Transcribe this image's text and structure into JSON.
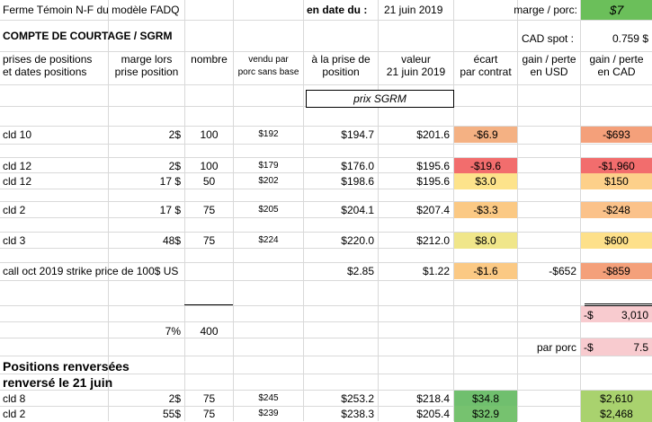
{
  "header": {
    "farm_label": "Ferme Témoin  N-F du modèle FADQ",
    "date_label": "en date du :",
    "date_value": "21 juin 2019",
    "margin_label": "marge / porc:",
    "margin_value": "$7",
    "section_title": "COMPTE DE COURTAGE / SGRM",
    "cad_spot_label": "CAD spot :",
    "cad_spot_value": "0.759 $"
  },
  "columns": {
    "col1": [
      "prises de positions",
      "et dates positions"
    ],
    "col2": [
      "marge lors",
      "prise position"
    ],
    "col3": [
      "nombre",
      ""
    ],
    "col4": [
      "vendu par",
      "porc sans base"
    ],
    "col5": [
      "à la prise de",
      "position"
    ],
    "col6": [
      "valeur",
      "21 juin 2019"
    ],
    "col7": [
      "écart",
      "par contrat"
    ],
    "col8": [
      "gain / perte",
      "en USD"
    ],
    "col9": [
      "gain / perte",
      "en CAD"
    ]
  },
  "sgrm_box_label": "prix SGRM",
  "rows": [
    {
      "name": "cld 10",
      "marge": "2$",
      "nombre": "100",
      "vendu": "$192",
      "prise": "$194.7",
      "valeur": "$201.6",
      "ecart": "-$6.9",
      "usd": "",
      "cad": "-$693",
      "ecart_color": "#f4b183",
      "cad_color": "#f4a07a"
    },
    {
      "name": "cld 12",
      "marge": "2$",
      "nombre": "100",
      "vendu": "$179",
      "prise": "$176.0",
      "valeur": "$195.6",
      "ecart": "-$19.6",
      "usd": "",
      "cad": "-$1,960",
      "ecart_color": "#f26d6d",
      "cad_color": "#f26d6d"
    },
    {
      "name": "cld 12",
      "marge": "17 $",
      "nombre": "50",
      "vendu": "$202",
      "prise": "$198.6",
      "valeur": "$195.6",
      "ecart": "$3.0",
      "usd": "",
      "cad": "$150",
      "ecart_color": "#fde38b",
      "cad_color": "#fdd08a"
    },
    {
      "name": "cld 2",
      "marge": "17 $",
      "nombre": "75",
      "vendu": "$205",
      "prise": "$204.1",
      "valeur": "$207.4",
      "ecart": "-$3.3",
      "usd": "",
      "cad": "-$248",
      "ecart_color": "#fbc984",
      "cad_color": "#fbc28a"
    },
    {
      "name": "cld 3",
      "marge": "48$",
      "nombre": "75",
      "vendu": "$224",
      "prise": "$220.0",
      "valeur": "$212.0",
      "ecart": "$8.0",
      "usd": "",
      "cad": "$600",
      "ecart_color": "#f0e68a",
      "cad_color": "#fde08a"
    },
    {
      "name": "call  oct 2019  strike price de  100$ US",
      "marge": "",
      "nombre": "",
      "vendu": "",
      "prise": "$2.85",
      "valeur": "$1.22",
      "ecart": "-$1.6",
      "usd": "-$652",
      "cad": "-$859",
      "ecart_color": "#fbc984",
      "cad_color": "#f4a07a"
    }
  ],
  "totals": {
    "total_cad_prefix": "-$",
    "total_cad": "3,010",
    "total_color": "#f8cbcf",
    "pct": "7%",
    "count": "400",
    "per_pig_label": "par porc",
    "per_pig_prefix": "-$",
    "per_pig_value": "7.5"
  },
  "reversed": {
    "title_line1": "Positions renversées",
    "title_line2": "renversé le 21 juin",
    "rows": [
      {
        "name": "cld 8",
        "marge": "2$",
        "nombre": "75",
        "vendu": "$245",
        "prise": "$253.2",
        "valeur": "$218.4",
        "ecart": "$34.8",
        "cad": "$2,610",
        "ecart_color": "#70bf6e",
        "cad_color": "#a9d26e"
      },
      {
        "name": "cld 2",
        "marge": "55$",
        "nombre": "75",
        "vendu": "$239",
        "prise": "$238.3",
        "valeur": "$205.4",
        "ecart": "$32.9",
        "cad": "$2,468",
        "ecart_color": "#76c26f",
        "cad_color": "#a9d26e"
      }
    ]
  },
  "colors": {
    "margin_green": "#6bbf5a",
    "total_pink": "#f8cbcf"
  }
}
